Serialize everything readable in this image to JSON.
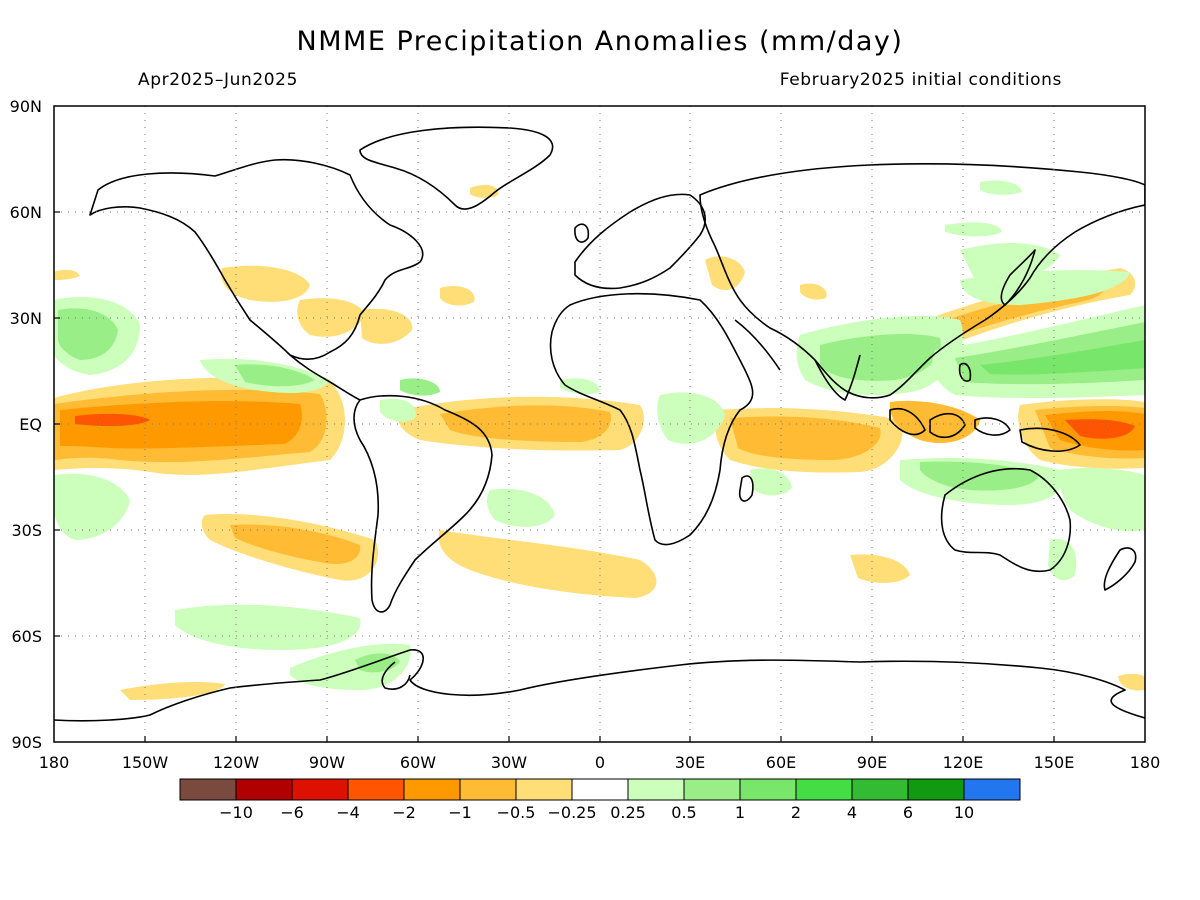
{
  "title": "NMME Precipitation Anomalies (mm/day)",
  "period": "Apr2025–Jun2025",
  "init": "February2025 initial conditions",
  "lon_ticks": [
    "180",
    "150W",
    "120W",
    "90W",
    "60W",
    "30W",
    "0",
    "30E",
    "60E",
    "90E",
    "120E",
    "150E",
    "180"
  ],
  "lat_ticks": [
    "90N",
    "60N",
    "30N",
    "EQ",
    "30S",
    "60S",
    "90S"
  ],
  "colorbar": {
    "colors": [
      "#7a4a3e",
      "#b00000",
      "#dd1100",
      "#ff5500",
      "#ff9900",
      "#ffbb33",
      "#ffdd77",
      "#ffffff",
      "#ccffbb",
      "#99ee88",
      "#77e66a",
      "#44dd44",
      "#33bb33",
      "#119911",
      "#2277ee"
    ],
    "labels": [
      "-10",
      "-6",
      "-4",
      "-2",
      "-1",
      "-0.5",
      "-0.25",
      "0.25",
      "0.5",
      "1",
      "2",
      "4",
      "6",
      "10"
    ]
  },
  "colors": {
    "dry_light": "#ffdd77",
    "dry_mid": "#ffbb33",
    "dry_strong": "#ff9900",
    "dry_vstrong": "#ff5500",
    "wet_light": "#ccffbb",
    "wet_mid": "#99ee88",
    "wet_strong": "#77e66a"
  }
}
